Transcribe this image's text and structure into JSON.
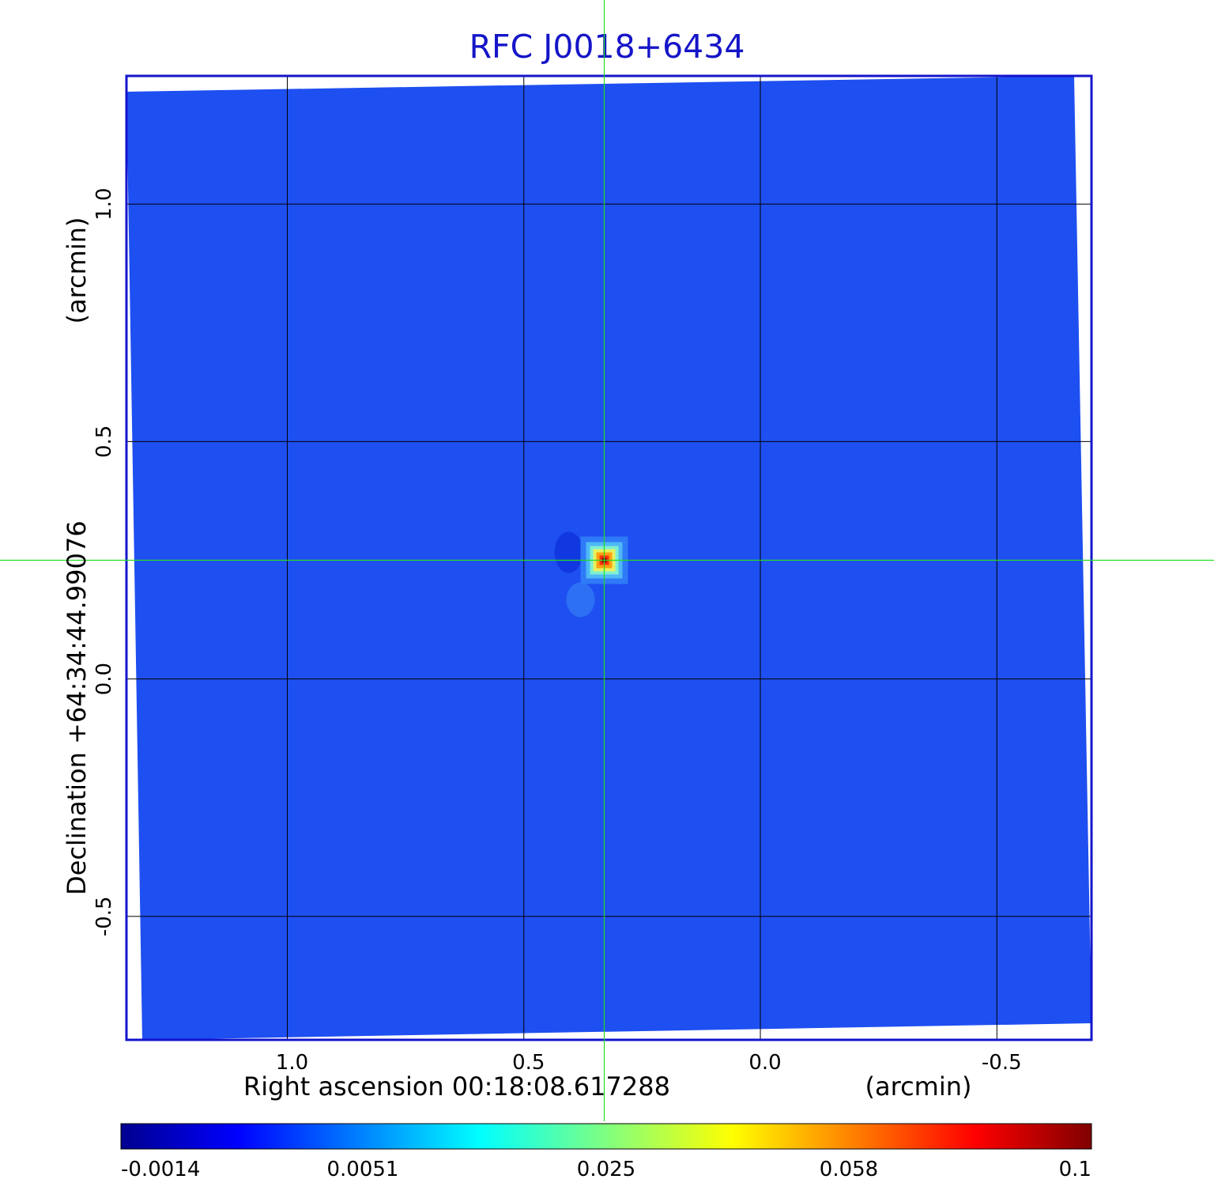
{
  "chart_data": {
    "type": "heatmap",
    "title": "RFC J0018+6434",
    "xlabel": "Right ascension  00:18:08.617288",
    "xunit": "(arcmin)",
    "ylabel": "Declination  +64:34:44.99076",
    "yunit": "(arcmin)",
    "xlim": [
      1.34,
      -0.7
    ],
    "ylim": [
      -0.76,
      1.27
    ],
    "x_ticks": [
      1.0,
      0.5,
      0.0,
      -0.5
    ],
    "x_tick_labels": [
      "1.0",
      "0.5",
      "0.0",
      "-0.5"
    ],
    "y_ticks": [
      1.0,
      0.5,
      0.0,
      -0.5
    ],
    "y_tick_labels": [
      "1.0",
      "0.5",
      "0.0",
      "-0.5"
    ],
    "grid": true,
    "crosshair": {
      "x": 0.33,
      "y": 0.25
    },
    "source_peak": {
      "x": 0.33,
      "y": 0.25,
      "value": 0.1
    },
    "background_level": 0.0035,
    "colorbar": {
      "ticks": [
        -0.0014,
        0.0051,
        0.025,
        0.058,
        0.1
      ],
      "tick_labels": [
        "-0.0014",
        "0.0051",
        "0.025",
        "0.058",
        "0.1"
      ],
      "colormap": "jet"
    },
    "colors": {
      "title": "#1515c8",
      "frame": "#1414cc",
      "crosshair": "#22dd22",
      "grid": "#000000",
      "background_map": "#1e4ff0"
    }
  }
}
